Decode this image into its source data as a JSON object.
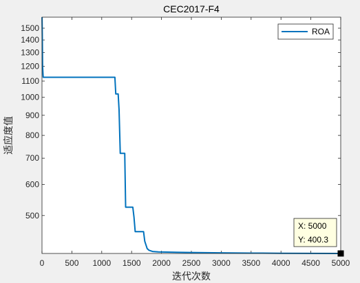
{
  "chart_data": {
    "type": "line",
    "title": "CEC2017-F4",
    "xlabel": "迭代次数",
    "ylabel": "适应度值",
    "xlim": [
      0,
      5000
    ],
    "ylim": [
      400.3,
      1600
    ],
    "yscale": "log",
    "grid": false,
    "legend_position": "top-right",
    "xticks": [
      0,
      500,
      1000,
      1500,
      2000,
      2500,
      3000,
      3500,
      4000,
      4500,
      5000
    ],
    "yticks": [
      500,
      600,
      700,
      800,
      900,
      1000,
      1100,
      1200,
      1300,
      1400,
      1500
    ],
    "series": [
      {
        "name": "ROA",
        "color": "#0072bd",
        "x": [
          1,
          5,
          10,
          20,
          1220,
          1235,
          1275,
          1290,
          1310,
          1385,
          1400,
          1520,
          1540,
          1560,
          1700,
          1720,
          1760,
          1790,
          1850,
          1950,
          2100,
          2500,
          3000,
          3500,
          4000,
          4500,
          5000
        ],
        "y": [
          1600,
          1450,
          1200,
          1125,
          1125,
          1020,
          1020,
          930,
          720,
          720,
          525,
          525,
          495,
          455,
          455,
          430,
          412,
          408,
          405,
          404,
          403.5,
          402.5,
          401.8,
          401.2,
          400.8,
          400.5,
          400.3
        ]
      }
    ],
    "datatip": {
      "x_label": "X: 5000",
      "y_label": "Y: 400.3",
      "x": 5000,
      "y": 400.3
    }
  }
}
